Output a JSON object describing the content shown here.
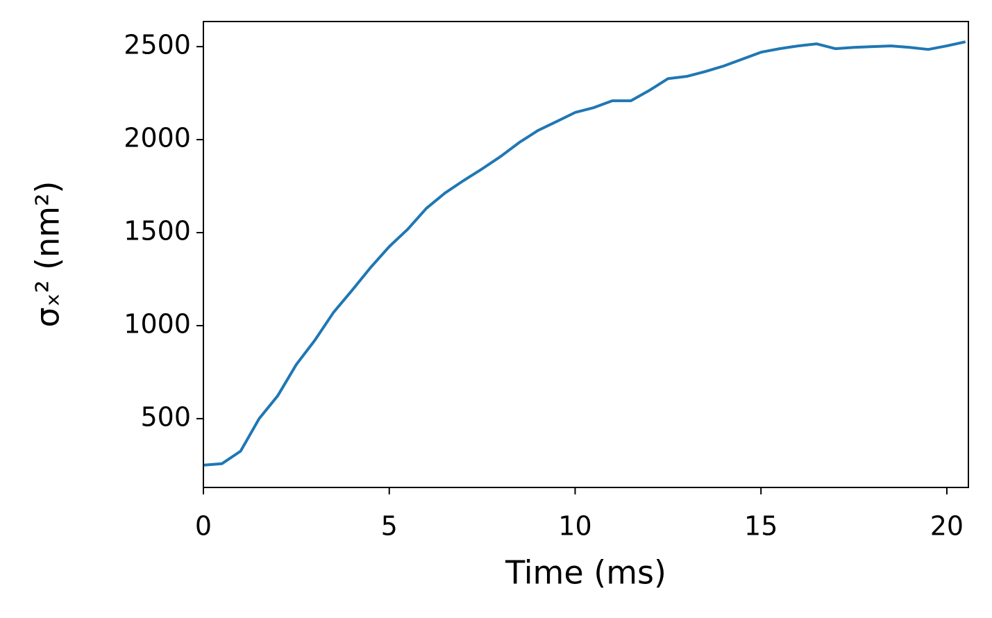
{
  "chart_data": {
    "type": "line",
    "xlabel": "Time (ms)",
    "ylabel": "σₓ² (nm²)",
    "x": [
      0,
      0.5,
      1,
      1.5,
      2,
      2.5,
      3,
      3.5,
      4,
      4.5,
      5,
      5.5,
      6,
      6.5,
      7,
      7.5,
      8,
      8.5,
      9,
      9.5,
      10,
      10.5,
      11,
      11.5,
      12,
      12.5,
      13,
      13.5,
      14,
      14.5,
      15,
      15.5,
      16,
      16.5,
      17,
      17.5,
      18,
      18.5,
      19,
      19.5,
      20,
      20.5
    ],
    "series": [
      {
        "color": "#1f77b4",
        "values": [
          250,
          258,
          325,
          500,
          623,
          791,
          922,
          1071,
          1190,
          1313,
          1425,
          1519,
          1631,
          1713,
          1780,
          1843,
          1910,
          1985,
          2049,
          2097,
          2146,
          2172,
          2209,
          2209,
          2265,
          2328,
          2340,
          2366,
          2396,
          2433,
          2470,
          2489,
          2504,
          2515,
          2489,
          2496,
          2500,
          2504,
          2496,
          2485,
          2504,
          2526
        ]
      }
    ],
    "xlim": [
      0,
      20.58
    ],
    "ylim": [
      130,
      2635
    ],
    "xticks": [
      0,
      5,
      10,
      15,
      20
    ],
    "yticks": [
      500,
      1000,
      1500,
      2000,
      2500
    ]
  }
}
